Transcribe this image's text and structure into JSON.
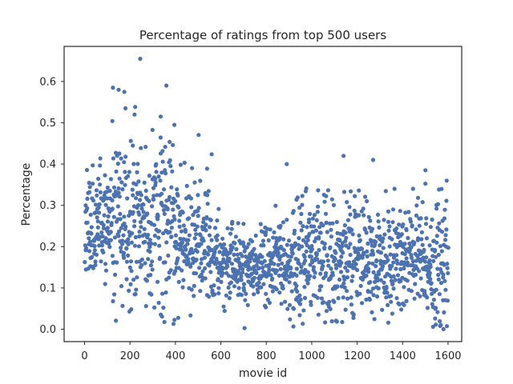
{
  "chart_data": {
    "type": "scatter",
    "title": "Percentage of ratings from top 500 users",
    "xlabel": "movie id",
    "ylabel": "Percentage",
    "xlim": [
      -90,
      1660
    ],
    "ylim": [
      -0.03,
      0.685
    ],
    "xticks": [
      0,
      200,
      400,
      600,
      800,
      1000,
      1200,
      1400,
      1600
    ],
    "yticks": [
      0.0,
      0.1,
      0.2,
      0.3,
      0.4,
      0.5,
      0.6
    ],
    "xtick_labels": [
      "0",
      "200",
      "400",
      "600",
      "800",
      "1000",
      "1200",
      "1400",
      "1600"
    ],
    "ytick_labels": [
      "0.0",
      "0.1",
      "0.2",
      "0.3",
      "0.4",
      "0.5",
      "0.6"
    ],
    "grid": false,
    "legend": "none",
    "marker_color": "#4c72b0",
    "n_points": 1600,
    "sampling": "estimated distribution: movie ids 1-1600 roughly uniform; percentage higher and more spread for ids below ~550, lower cluster near 0.15 for larger ids",
    "outliers": [
      {
        "x": 245,
        "y": 0.655
      },
      {
        "x": 360,
        "y": 0.59
      },
      {
        "x": 125,
        "y": 0.585
      },
      {
        "x": 150,
        "y": 0.58
      },
      {
        "x": 175,
        "y": 0.575
      },
      {
        "x": 180,
        "y": 0.535
      },
      {
        "x": 220,
        "y": 0.52
      },
      {
        "x": 335,
        "y": 0.515
      },
      {
        "x": 395,
        "y": 0.495
      },
      {
        "x": 890,
        "y": 0.4
      },
      {
        "x": 1140,
        "y": 0.42
      },
      {
        "x": 1270,
        "y": 0.41
      },
      {
        "x": 1500,
        "y": 0.385
      }
    ]
  }
}
